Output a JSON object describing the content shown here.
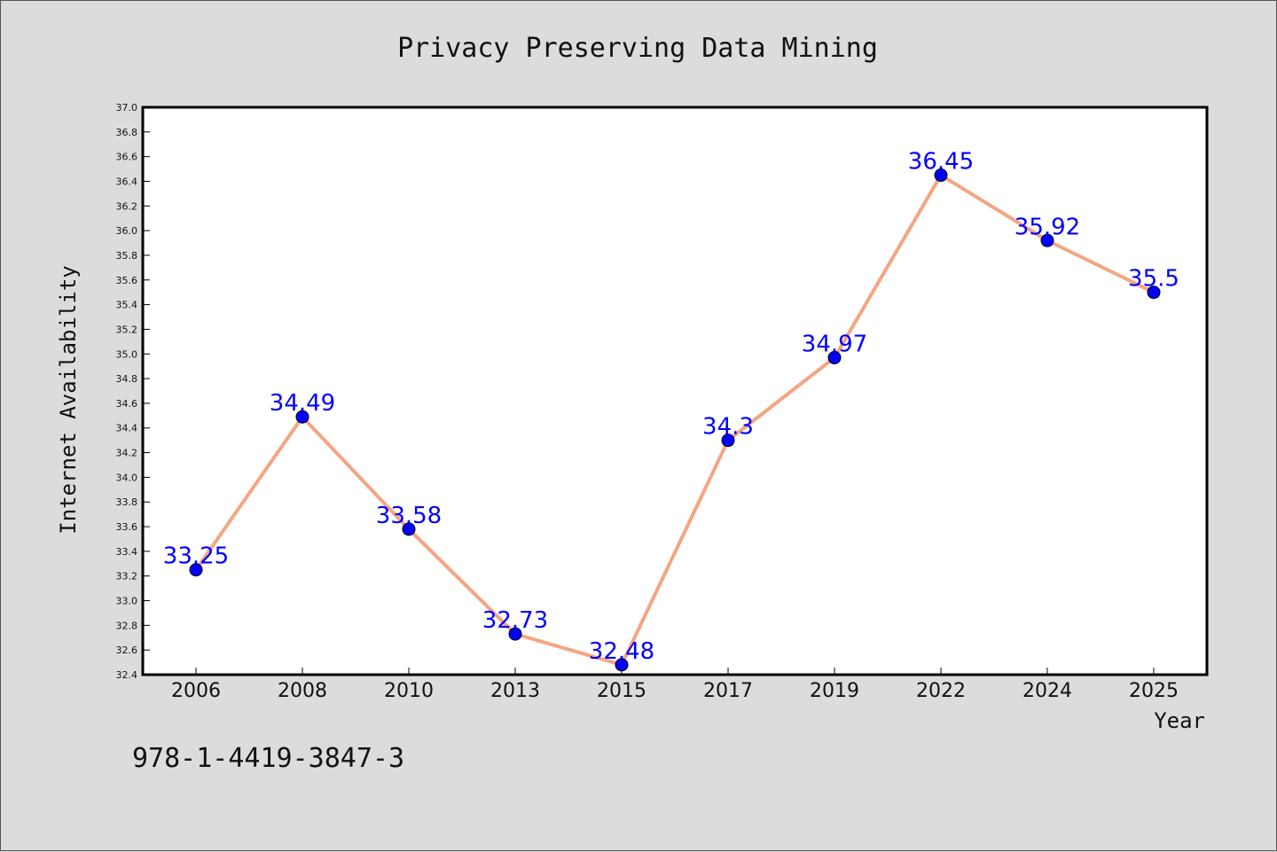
{
  "footer_text": "978-1-4419-3847-3",
  "colors": {
    "background": "#dcdcdc",
    "plot_background": "#ffffff",
    "line": "#f4a582",
    "marker": "#0000ff",
    "data_label": "#0000ff"
  },
  "chart_data": {
    "type": "line",
    "title": "Privacy Preserving Data Mining",
    "xlabel": "Year",
    "ylabel": "Internet Availability",
    "categories": [
      "2006",
      "2008",
      "2010",
      "2013",
      "2015",
      "2017",
      "2019",
      "2022",
      "2024",
      "2025"
    ],
    "values": [
      33.25,
      34.49,
      33.58,
      32.73,
      32.48,
      34.3,
      34.97,
      36.45,
      35.92,
      35.5
    ],
    "data_labels": [
      "33.25",
      "34.49",
      "33.58",
      "32.73",
      "32.48",
      "34.3",
      "34.97",
      "36.45",
      "35.92",
      "35.5"
    ],
    "ylim": [
      32.4,
      37.0
    ],
    "yticks": [
      "32.4",
      "32.6",
      "32.8",
      "33.0",
      "33.2",
      "33.4",
      "33.6",
      "33.8",
      "34.0",
      "34.2",
      "34.4",
      "34.6",
      "34.8",
      "35.0",
      "35.2",
      "35.4",
      "35.6",
      "35.8",
      "36.0",
      "36.2",
      "36.4",
      "36.6",
      "36.8",
      "37.0"
    ],
    "grid": false,
    "legend": "none"
  }
}
